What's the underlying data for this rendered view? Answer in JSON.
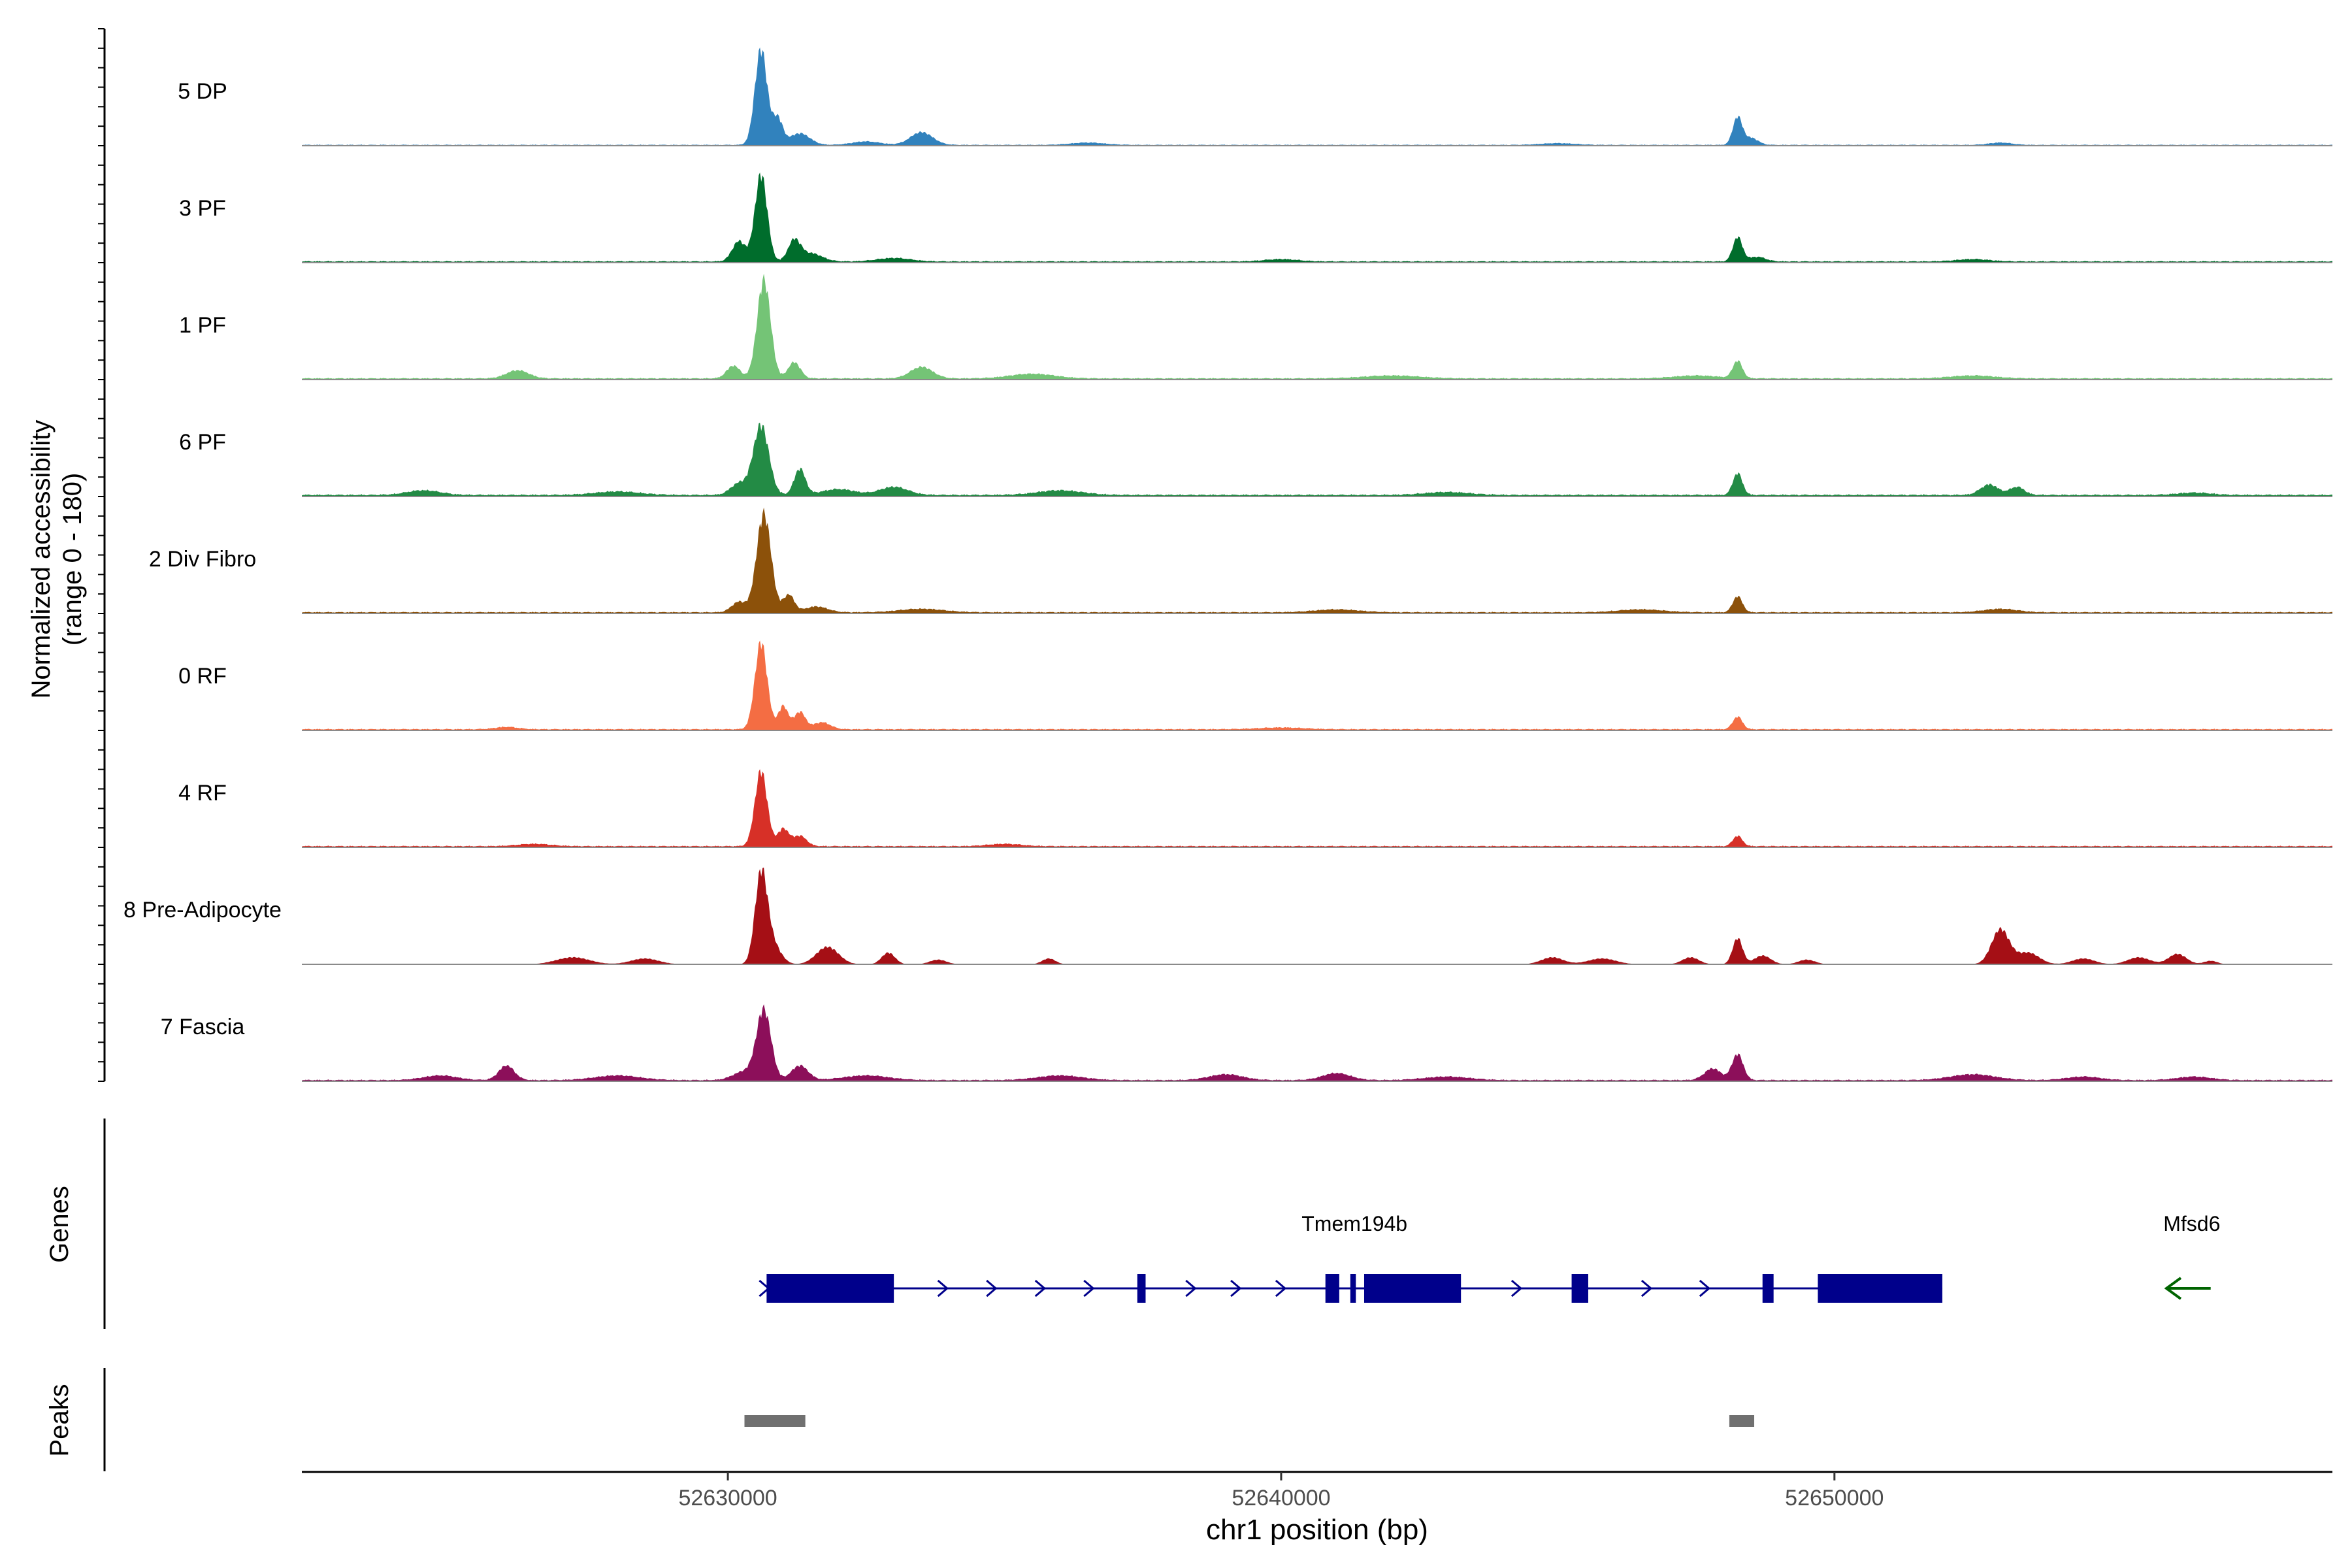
{
  "chart_data": {
    "type": "area",
    "title": "",
    "xlabel": "chr1 position (bp)",
    "ylabel": "Normalized accessibility",
    "ylabel_range": "(range 0 - 180)",
    "ylim": [
      0,
      180
    ],
    "xlim": [
      52622300,
      52659000
    ],
    "x_ticks": [
      {
        "value": 52630000,
        "label": "52630000"
      },
      {
        "value": 52640000,
        "label": "52640000"
      },
      {
        "value": 52650000,
        "label": "52650000"
      }
    ],
    "panel_labels": {
      "genes": "Genes",
      "peaks": "Peaks"
    },
    "series": [
      {
        "name": "5 DP",
        "color": "#3182bd",
        "baseline": 2,
        "peaks": [
          [
            52630600,
            165,
            110
          ],
          [
            52630900,
            45,
            90
          ],
          [
            52631300,
            20,
            180
          ],
          [
            52632500,
            6,
            250
          ],
          [
            52633500,
            22,
            200
          ],
          [
            52636500,
            4,
            300
          ],
          [
            52645000,
            3,
            300
          ],
          [
            52648250,
            48,
            85
          ],
          [
            52648500,
            12,
            120
          ],
          [
            52653000,
            4,
            200
          ]
        ]
      },
      {
        "name": "3 PF",
        "color": "#006d2c",
        "baseline": 3,
        "peaks": [
          [
            52630600,
            150,
            110
          ],
          [
            52630200,
            35,
            120
          ],
          [
            52631200,
            35,
            110
          ],
          [
            52631500,
            14,
            200
          ],
          [
            52633000,
            6,
            300
          ],
          [
            52640000,
            4,
            300
          ],
          [
            52648250,
            42,
            85
          ],
          [
            52648600,
            8,
            150
          ],
          [
            52652500,
            4,
            300
          ]
        ]
      },
      {
        "name": "1 PF",
        "color": "#74c476",
        "baseline": 3,
        "peaks": [
          [
            52630650,
            170,
            120
          ],
          [
            52630100,
            22,
            120
          ],
          [
            52631200,
            28,
            110
          ],
          [
            52633500,
            20,
            200
          ],
          [
            52626200,
            14,
            200
          ],
          [
            52635500,
            8,
            400
          ],
          [
            52642000,
            5,
            500
          ],
          [
            52647500,
            5,
            400
          ],
          [
            52648250,
            30,
            85
          ],
          [
            52652500,
            5,
            400
          ]
        ]
      },
      {
        "name": "6 PF",
        "color": "#238b45",
        "baseline": 4,
        "peaks": [
          [
            52630600,
            120,
            140
          ],
          [
            52630200,
            20,
            150
          ],
          [
            52631300,
            45,
            100
          ],
          [
            52632000,
            10,
            300
          ],
          [
            52633000,
            14,
            250
          ],
          [
            52624500,
            8,
            300
          ],
          [
            52628000,
            6,
            400
          ],
          [
            52636000,
            8,
            400
          ],
          [
            52643000,
            5,
            400
          ],
          [
            52648250,
            38,
            85
          ],
          [
            52652800,
            18,
            160
          ],
          [
            52653300,
            14,
            130
          ],
          [
            52656500,
            4,
            300
          ]
        ]
      },
      {
        "name": "2 Div Fibro",
        "color": "#8c510a",
        "baseline": 3,
        "peaks": [
          [
            52630650,
            170,
            130
          ],
          [
            52630200,
            18,
            130
          ],
          [
            52631100,
            30,
            100
          ],
          [
            52631600,
            10,
            200
          ],
          [
            52633500,
            6,
            400
          ],
          [
            52641000,
            5,
            400
          ],
          [
            52648250,
            28,
            85
          ],
          [
            52646500,
            5,
            400
          ],
          [
            52653000,
            6,
            300
          ]
        ]
      },
      {
        "name": "0 RF",
        "color": "#f46d43",
        "baseline": 3,
        "peaks": [
          [
            52630600,
            150,
            110
          ],
          [
            52631000,
            40,
            90
          ],
          [
            52631300,
            30,
            100
          ],
          [
            52631700,
            12,
            150
          ],
          [
            52626000,
            4,
            200
          ],
          [
            52648250,
            22,
            85
          ],
          [
            52640000,
            3,
            400
          ]
        ]
      },
      {
        "name": "4 RF",
        "color": "#d73027",
        "baseline": 3,
        "peaks": [
          [
            52630600,
            130,
            110
          ],
          [
            52631000,
            30,
            100
          ],
          [
            52631300,
            18,
            120
          ],
          [
            52626500,
            4,
            300
          ],
          [
            52648250,
            18,
            85
          ],
          [
            52635000,
            4,
            300
          ]
        ]
      },
      {
        "name": "8 Pre-Adipocyte",
        "color": "#a50f15",
        "baseline": 0,
        "peaks": [
          [
            52630600,
            150,
            110
          ],
          [
            52630800,
            35,
            150
          ],
          [
            52631800,
            30,
            200
          ],
          [
            52632900,
            20,
            120
          ],
          [
            52627200,
            12,
            300
          ],
          [
            52628500,
            10,
            250
          ],
          [
            52633800,
            8,
            150
          ],
          [
            52635800,
            10,
            120
          ],
          [
            52644900,
            12,
            200
          ],
          [
            52645800,
            10,
            250
          ],
          [
            52647400,
            12,
            150
          ],
          [
            52648250,
            45,
            90
          ],
          [
            52648700,
            15,
            150
          ],
          [
            52649500,
            8,
            150
          ],
          [
            52653000,
            60,
            160
          ],
          [
            52653500,
            20,
            200
          ],
          [
            52654500,
            10,
            200
          ],
          [
            52655500,
            12,
            200
          ],
          [
            52656200,
            18,
            160
          ],
          [
            52656800,
            6,
            120
          ]
        ]
      },
      {
        "name": "7 Fascia",
        "color": "#8c0f5a",
        "baseline": 3,
        "peaks": [
          [
            52630650,
            120,
            130
          ],
          [
            52630300,
            15,
            200
          ],
          [
            52631300,
            25,
            150
          ],
          [
            52626000,
            25,
            140
          ],
          [
            52624800,
            8,
            300
          ],
          [
            52628000,
            8,
            400
          ],
          [
            52632500,
            8,
            400
          ],
          [
            52636000,
            8,
            400
          ],
          [
            52639000,
            10,
            300
          ],
          [
            52641000,
            12,
            250
          ],
          [
            52643000,
            6,
            400
          ],
          [
            52648250,
            45,
            100
          ],
          [
            52647800,
            20,
            150
          ],
          [
            52652500,
            10,
            400
          ],
          [
            52654500,
            6,
            300
          ],
          [
            52656500,
            6,
            300
          ]
        ]
      }
    ],
    "genes": [
      {
        "name": "Tmem194b",
        "strand": "+",
        "color": "#00008b",
        "start": 52630700,
        "end": 52651950,
        "exons": [
          [
            52630700,
            52633000
          ],
          [
            52637400,
            52637550
          ],
          [
            52640800,
            52641050
          ],
          [
            52641250,
            52641350
          ],
          [
            52641500,
            52643250
          ],
          [
            52645250,
            52645550
          ],
          [
            52648700,
            52648900
          ],
          [
            52649700,
            52651950
          ]
        ]
      },
      {
        "name": "Mfsd6",
        "strand": "-",
        "color": "#006400",
        "start": 52656000,
        "end": 52656800,
        "exons": []
      }
    ],
    "peaks_track": [
      {
        "start": 52630300,
        "end": 52631400,
        "color": "#707070"
      },
      {
        "start": 52648100,
        "end": 52648550,
        "color": "#707070"
      }
    ]
  }
}
